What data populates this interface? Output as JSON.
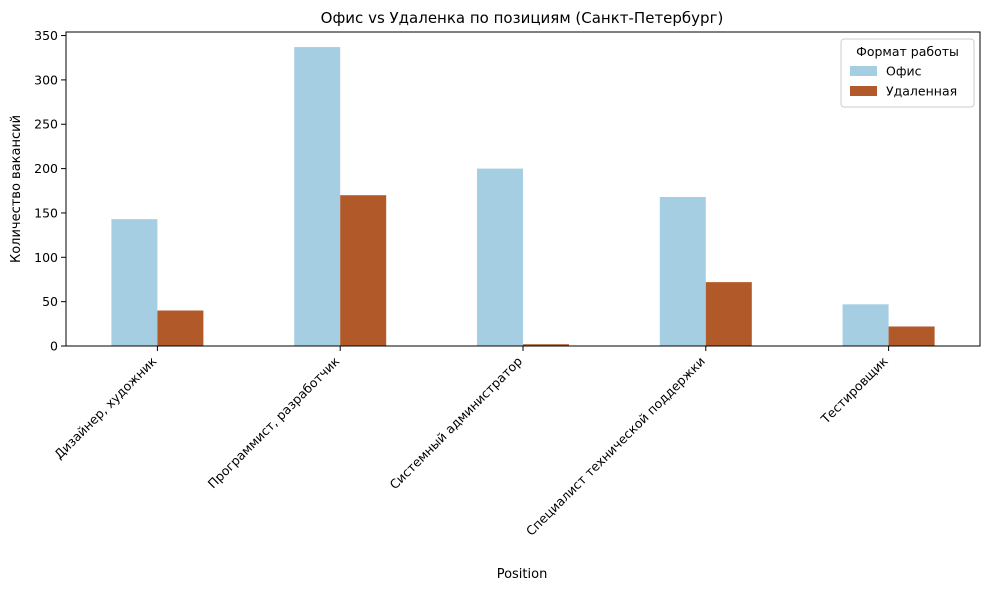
{
  "chart_data": {
    "type": "bar",
    "title": "Офис vs Удаленка по позициям (Санкт-Петербург)",
    "xlabel": "Position",
    "ylabel": "Количество вакансий",
    "categories": [
      "Дизайнер, художник",
      "Программист, разработчик",
      "Системный администратор",
      "Специалист технической поддержки",
      "Тестировщик"
    ],
    "series": [
      {
        "name": "Офис",
        "values": [
          143,
          337,
          200,
          168,
          47
        ],
        "color": "#a6cee3"
      },
      {
        "name": "Удаленная",
        "values": [
          40,
          170,
          2,
          72,
          22
        ],
        "color": "#b15928"
      }
    ],
    "ylim": [
      0,
      354
    ],
    "yticks": [
      0,
      50,
      100,
      150,
      200,
      250,
      300,
      350
    ],
    "grid": false,
    "legend": {
      "title": "Формат работы",
      "placement": "top-right"
    }
  }
}
